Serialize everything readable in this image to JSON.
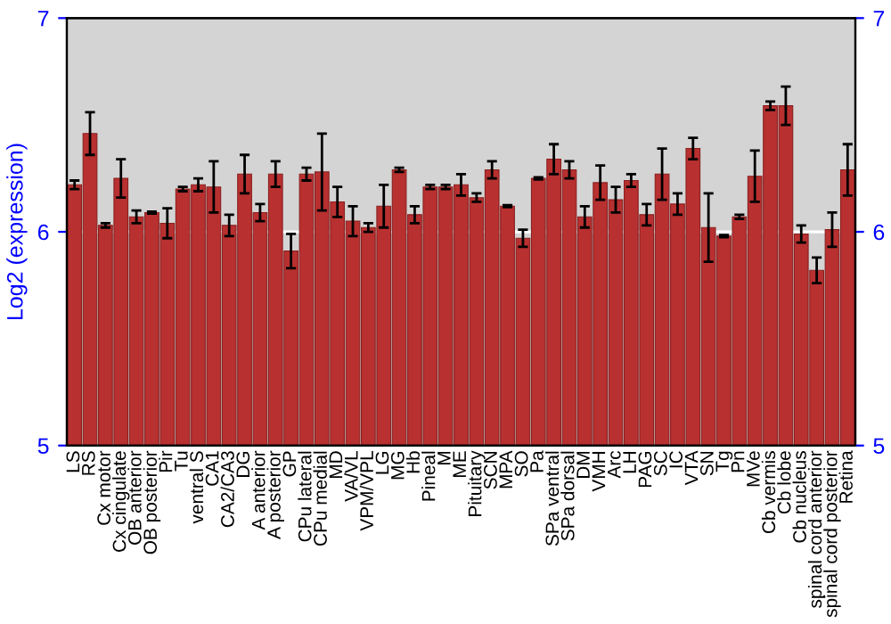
{
  "chart_data": {
    "type": "bar",
    "ylabel": "Log2 (expression)",
    "categories": [
      "LS",
      "RS",
      "Cx motor",
      "Cx cingulate",
      "OB anterior",
      "OB posterior",
      "Pir",
      "Tu",
      "ventral S",
      "CA1",
      "CA2/CA3",
      "DG",
      "A anterior",
      "A posterior",
      "GP",
      "CPu lateral",
      "CPu medial",
      "MD",
      "VA/VL",
      "VPM/VPL",
      "LG",
      "MG",
      "Hb",
      "Pineal",
      "M",
      "ME",
      "Pituitary",
      "SCN",
      "MPA",
      "SO",
      "Pa",
      "SPa ventral",
      "SPa dorsal",
      "DM",
      "VMH",
      "Arc",
      "LH",
      "PAG",
      "SC",
      "IC",
      "VTA",
      "SN",
      "Tg",
      "Pn",
      "MVe",
      "Cb vermis",
      "Cb lobe",
      "Cb nucleus",
      "spinal cord anterior",
      "spinal cord posterior",
      "Retina"
    ],
    "series": [
      {
        "color": "#b83030",
        "values": [
          6.22,
          6.46,
          6.03,
          6.25,
          6.07,
          6.09,
          6.04,
          6.2,
          6.22,
          6.21,
          6.03,
          6.27,
          6.09,
          6.27,
          5.91,
          6.27,
          6.28,
          6.14,
          6.05,
          6.02,
          6.12,
          6.29,
          6.08,
          6.21,
          6.21,
          6.22,
          6.16,
          6.29,
          6.12,
          5.97,
          6.25,
          6.34,
          6.29,
          6.07,
          6.23,
          6.15,
          6.24,
          6.08,
          6.27,
          6.13,
          6.39,
          6.02,
          5.98,
          6.07,
          6.26,
          6.59,
          6.59,
          5.99,
          5.82,
          6.01,
          6.29
        ],
        "errors": [
          0.02,
          0.1,
          0.01,
          0.09,
          0.03,
          0.005,
          0.07,
          0.01,
          0.03,
          0.12,
          0.05,
          0.09,
          0.04,
          0.06,
          0.08,
          0.03,
          0.18,
          0.07,
          0.07,
          0.02,
          0.1,
          0.01,
          0.04,
          0.01,
          0.01,
          0.05,
          0.02,
          0.04,
          0.005,
          0.04,
          0.005,
          0.07,
          0.04,
          0.05,
          0.08,
          0.06,
          0.03,
          0.05,
          0.12,
          0.05,
          0.05,
          0.16,
          0.005,
          0.01,
          0.12,
          0.02,
          0.09,
          0.04,
          0.06,
          0.08,
          0.12
        ]
      }
    ],
    "ylim": [
      5,
      7
    ],
    "yticks": [
      5,
      6,
      7
    ],
    "y2lim": [
      5,
      7
    ],
    "y2ticks": [
      5,
      6,
      7
    ],
    "grid": "y",
    "legend": false
  }
}
